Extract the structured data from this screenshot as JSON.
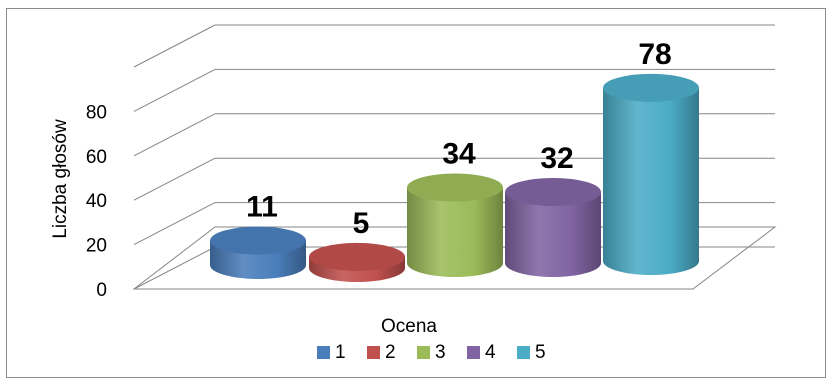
{
  "chart_data": {
    "type": "bar",
    "style": "3d-cylinder",
    "categories": [
      "1",
      "2",
      "3",
      "4",
      "5"
    ],
    "values": [
      11,
      5,
      34,
      32,
      78
    ],
    "data_labels": [
      "11",
      "5",
      "34",
      "32",
      "78"
    ],
    "colors": [
      "#4a7ebb",
      "#c0504d",
      "#9bbb59",
      "#8064a2",
      "#4bacc6"
    ],
    "xlabel": "Ocena",
    "ylabel": "Liczba głosów",
    "yticks": [
      "0",
      "20",
      "40",
      "60",
      "80"
    ],
    "ylim": [
      0,
      100
    ],
    "grid": true,
    "legend": {
      "position": "bottom",
      "entries": [
        "1",
        "2",
        "3",
        "4",
        "5"
      ]
    }
  }
}
